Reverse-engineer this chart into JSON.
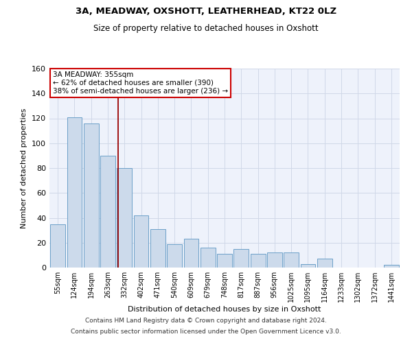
{
  "title_line1": "3A, MEADWAY, OXSHOTT, LEATHERHEAD, KT22 0LZ",
  "title_line2": "Size of property relative to detached houses in Oxshott",
  "xlabel": "Distribution of detached houses by size in Oxshott",
  "ylabel": "Number of detached properties",
  "bar_color": "#ccdaeb",
  "bar_edge_color": "#6b9fc8",
  "categories": [
    "55sqm",
    "124sqm",
    "194sqm",
    "263sqm",
    "332sqm",
    "402sqm",
    "471sqm",
    "540sqm",
    "609sqm",
    "679sqm",
    "748sqm",
    "817sqm",
    "887sqm",
    "956sqm",
    "1025sqm",
    "1095sqm",
    "1164sqm",
    "1233sqm",
    "1302sqm",
    "1372sqm",
    "1441sqm"
  ],
  "values": [
    35,
    121,
    116,
    90,
    80,
    42,
    31,
    19,
    23,
    16,
    11,
    15,
    11,
    12,
    12,
    3,
    7,
    0,
    0,
    0,
    2
  ],
  "ylim": [
    0,
    160
  ],
  "yticks": [
    0,
    20,
    40,
    60,
    80,
    100,
    120,
    140,
    160
  ],
  "vline_x": 3.62,
  "vline_color": "#990000",
  "annotation_text": "3A MEADWAY: 355sqm\n← 62% of detached houses are smaller (390)\n38% of semi-detached houses are larger (236) →",
  "annotation_box_color": "#ffffff",
  "annotation_box_edge": "#cc0000",
  "grid_color": "#d0d8e8",
  "footer_line1": "Contains HM Land Registry data © Crown copyright and database right 2024.",
  "footer_line2": "Contains public sector information licensed under the Open Government Licence v3.0.",
  "bg_color": "#eef2fb"
}
